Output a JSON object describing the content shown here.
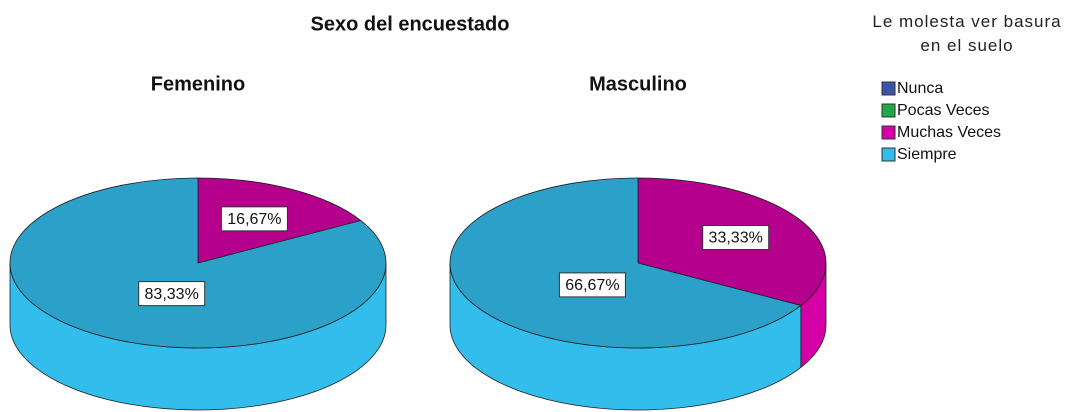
{
  "header": {
    "title": "Sexo del encuestado"
  },
  "legend": {
    "title": "Le molesta ver basura en el suelo",
    "entries": [
      {
        "name": "Nunca",
        "color": "#3a55a8"
      },
      {
        "name": "Pocas Veces",
        "color": "#22a845"
      },
      {
        "name": "Muchas Veces",
        "color": "#d400a6"
      },
      {
        "name": "Siempre",
        "color": "#33bdec"
      }
    ]
  },
  "chart_data": [
    {
      "type": "pie",
      "title": "Femenino",
      "categories": [
        "Muchas Veces",
        "Siempre"
      ],
      "values": [
        16.67,
        83.33
      ],
      "value_labels": [
        "16,67%",
        "83,33%"
      ],
      "colors": [
        "#d400a6",
        "#33bdec"
      ]
    },
    {
      "type": "pie",
      "title": "Masculino",
      "categories": [
        "Muchas Veces",
        "Siempre"
      ],
      "values": [
        33.33,
        66.67
      ],
      "value_labels": [
        "33,33%",
        "66,67%"
      ],
      "colors": [
        "#d400a6",
        "#33bdec"
      ]
    }
  ]
}
